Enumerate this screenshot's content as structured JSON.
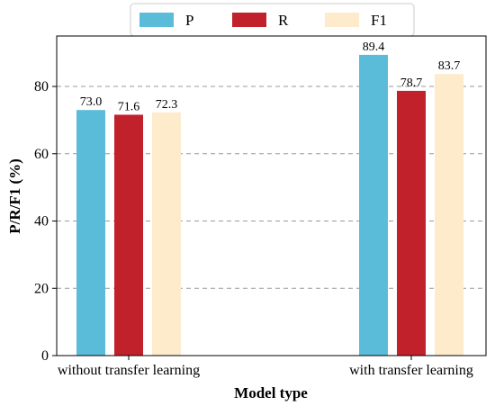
{
  "chart_data": {
    "type": "bar",
    "categories": [
      "without transfer learning",
      "with transfer learning"
    ],
    "series": [
      {
        "name": "P",
        "values": [
          73.0,
          89.4
        ],
        "color": "#5bbcd9"
      },
      {
        "name": "R",
        "values": [
          71.6,
          78.7
        ],
        "color": "#c0212a"
      },
      {
        "name": "F1",
        "values": [
          72.3,
          83.7
        ],
        "color": "#fdebcb"
      }
    ],
    "value_labels": [
      [
        "73.0",
        "89.4"
      ],
      [
        "71.6",
        "78.7"
      ],
      [
        "72.3",
        "83.7"
      ]
    ],
    "xlabel": "Model type",
    "ylabel": "P/R/F1 (%)",
    "ylim": [
      0,
      95
    ],
    "yticks": [
      0,
      20,
      40,
      60,
      80
    ],
    "ytick_labels": [
      "0",
      "20",
      "40",
      "60",
      "80"
    ],
    "grid": "horizontal dashed",
    "legend_position": "top-center"
  }
}
